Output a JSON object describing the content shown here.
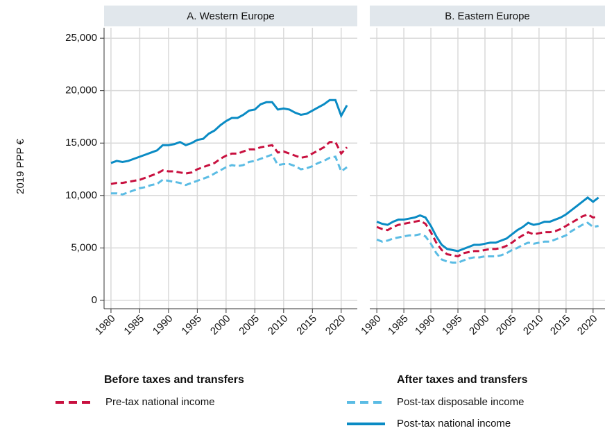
{
  "chart_data": [
    {
      "type": "line",
      "title": "A. Western Europe",
      "ylabel": "2019 PPP €",
      "x": [
        1980,
        1981,
        1982,
        1983,
        1984,
        1985,
        1986,
        1987,
        1988,
        1989,
        1990,
        1991,
        1992,
        1993,
        1994,
        1995,
        1996,
        1997,
        1998,
        1999,
        2000,
        2001,
        2002,
        2003,
        2004,
        2005,
        2006,
        2007,
        2008,
        2009,
        2010,
        2011,
        2012,
        2013,
        2014,
        2015,
        2016,
        2017,
        2018,
        2019,
        2020,
        2021
      ],
      "xlim": [
        1978.8,
        2022.8
      ],
      "xticks": [
        1980,
        1985,
        1990,
        1995,
        2000,
        2005,
        2010,
        2015,
        2020
      ],
      "ylim": [
        -800,
        26000
      ],
      "yticks": [
        0,
        {
          "value": 5000,
          "label": "5,000"
        },
        {
          "value": 10000,
          "label": "10,000"
        },
        {
          "value": 15000,
          "label": "15,000"
        },
        {
          "value": 20000,
          "label": "20,000"
        },
        {
          "value": 25000,
          "label": "25,000"
        }
      ],
      "grid": true,
      "legend_groups": [
        "Before taxes and transfers",
        "After taxes and transfers"
      ],
      "series": [
        {
          "name": "Pre-tax national income",
          "color": "#c8103f",
          "dashed": true,
          "values": [
            11100,
            11200,
            11200,
            11300,
            11400,
            11500,
            11700,
            11900,
            12100,
            12400,
            12300,
            12300,
            12200,
            12100,
            12200,
            12500,
            12700,
            12900,
            13100,
            13500,
            13800,
            14000,
            14000,
            14200,
            14400,
            14400,
            14600,
            14700,
            14800,
            14100,
            14200,
            14000,
            13800,
            13600,
            13700,
            14000,
            14300,
            14600,
            15100,
            15100,
            14000,
            14600
          ]
        },
        {
          "name": "Post-tax disposable income",
          "color": "#5bbce4",
          "dashed": true,
          "values": [
            10200,
            10200,
            10100,
            10300,
            10500,
            10700,
            10800,
            11000,
            11100,
            11500,
            11400,
            11300,
            11200,
            11000,
            11200,
            11400,
            11600,
            11800,
            12100,
            12400,
            12700,
            12900,
            12800,
            12900,
            13200,
            13300,
            13500,
            13700,
            13900,
            12900,
            13000,
            13000,
            12800,
            12500,
            12600,
            12800,
            13100,
            13300,
            13600,
            13700,
            12300,
            12700
          ]
        },
        {
          "name": "Post-tax national income",
          "color": "#0a8bc4",
          "dashed": false,
          "values": [
            13100,
            13300,
            13200,
            13300,
            13500,
            13700,
            13900,
            14100,
            14300,
            14800,
            14800,
            14900,
            15100,
            14800,
            15000,
            15300,
            15400,
            15900,
            16200,
            16700,
            17100,
            17400,
            17400,
            17700,
            18100,
            18200,
            18700,
            18900,
            18900,
            18200,
            18300,
            18200,
            17900,
            17700,
            17800,
            18100,
            18400,
            18700,
            19100,
            19100,
            17600,
            18600
          ]
        }
      ]
    },
    {
      "type": "line",
      "title": "B. Eastern Europe",
      "x": [
        1980,
        1981,
        1982,
        1983,
        1984,
        1985,
        1986,
        1987,
        1988,
        1989,
        1990,
        1991,
        1992,
        1993,
        1994,
        1995,
        1996,
        1997,
        1998,
        1999,
        2000,
        2001,
        2002,
        2003,
        2004,
        2005,
        2006,
        2007,
        2008,
        2009,
        2010,
        2011,
        2012,
        2013,
        2014,
        2015,
        2016,
        2017,
        2018,
        2019,
        2020,
        2021
      ],
      "xlim": [
        1978.7,
        2022.2
      ],
      "xticks": [
        1980,
        1985,
        1990,
        1995,
        2000,
        2005,
        2010,
        2015,
        2020
      ],
      "ylim": [
        -800,
        26000
      ],
      "yticks": [
        0,
        5000,
        10000,
        15000,
        20000,
        25000
      ],
      "grid": true,
      "series": [
        {
          "name": "Pre-tax national income",
          "color": "#c8103f",
          "dashed": true,
          "values": [
            7000,
            6800,
            6700,
            7000,
            7200,
            7300,
            7400,
            7500,
            7600,
            7300,
            6500,
            5500,
            4800,
            4400,
            4300,
            4200,
            4500,
            4600,
            4700,
            4700,
            4800,
            4900,
            4900,
            5000,
            5200,
            5500,
            5900,
            6200,
            6500,
            6300,
            6400,
            6500,
            6500,
            6600,
            6800,
            7100,
            7400,
            7700,
            8000,
            8200,
            7900,
            8000
          ]
        },
        {
          "name": "Post-tax disposable income",
          "color": "#5bbce4",
          "dashed": true,
          "values": [
            5800,
            5600,
            5700,
            5900,
            6000,
            6100,
            6200,
            6200,
            6300,
            6100,
            5400,
            4500,
            3900,
            3700,
            3600,
            3600,
            3800,
            4000,
            4100,
            4100,
            4200,
            4200,
            4200,
            4300,
            4500,
            4800,
            5000,
            5300,
            5500,
            5400,
            5500,
            5600,
            5600,
            5800,
            6000,
            6200,
            6600,
            6900,
            7200,
            7400,
            7000,
            7100
          ]
        },
        {
          "name": "Post-tax national income",
          "color": "#0a8bc4",
          "dashed": false,
          "values": [
            7500,
            7300,
            7200,
            7500,
            7700,
            7700,
            7800,
            7900,
            8100,
            7900,
            7100,
            6100,
            5300,
            4900,
            4800,
            4700,
            4900,
            5100,
            5300,
            5300,
            5400,
            5500,
            5500,
            5700,
            5900,
            6300,
            6700,
            7000,
            7400,
            7200,
            7300,
            7500,
            7500,
            7700,
            7900,
            8200,
            8600,
            9000,
            9400,
            9800,
            9400,
            9800
          ]
        }
      ]
    }
  ]
}
